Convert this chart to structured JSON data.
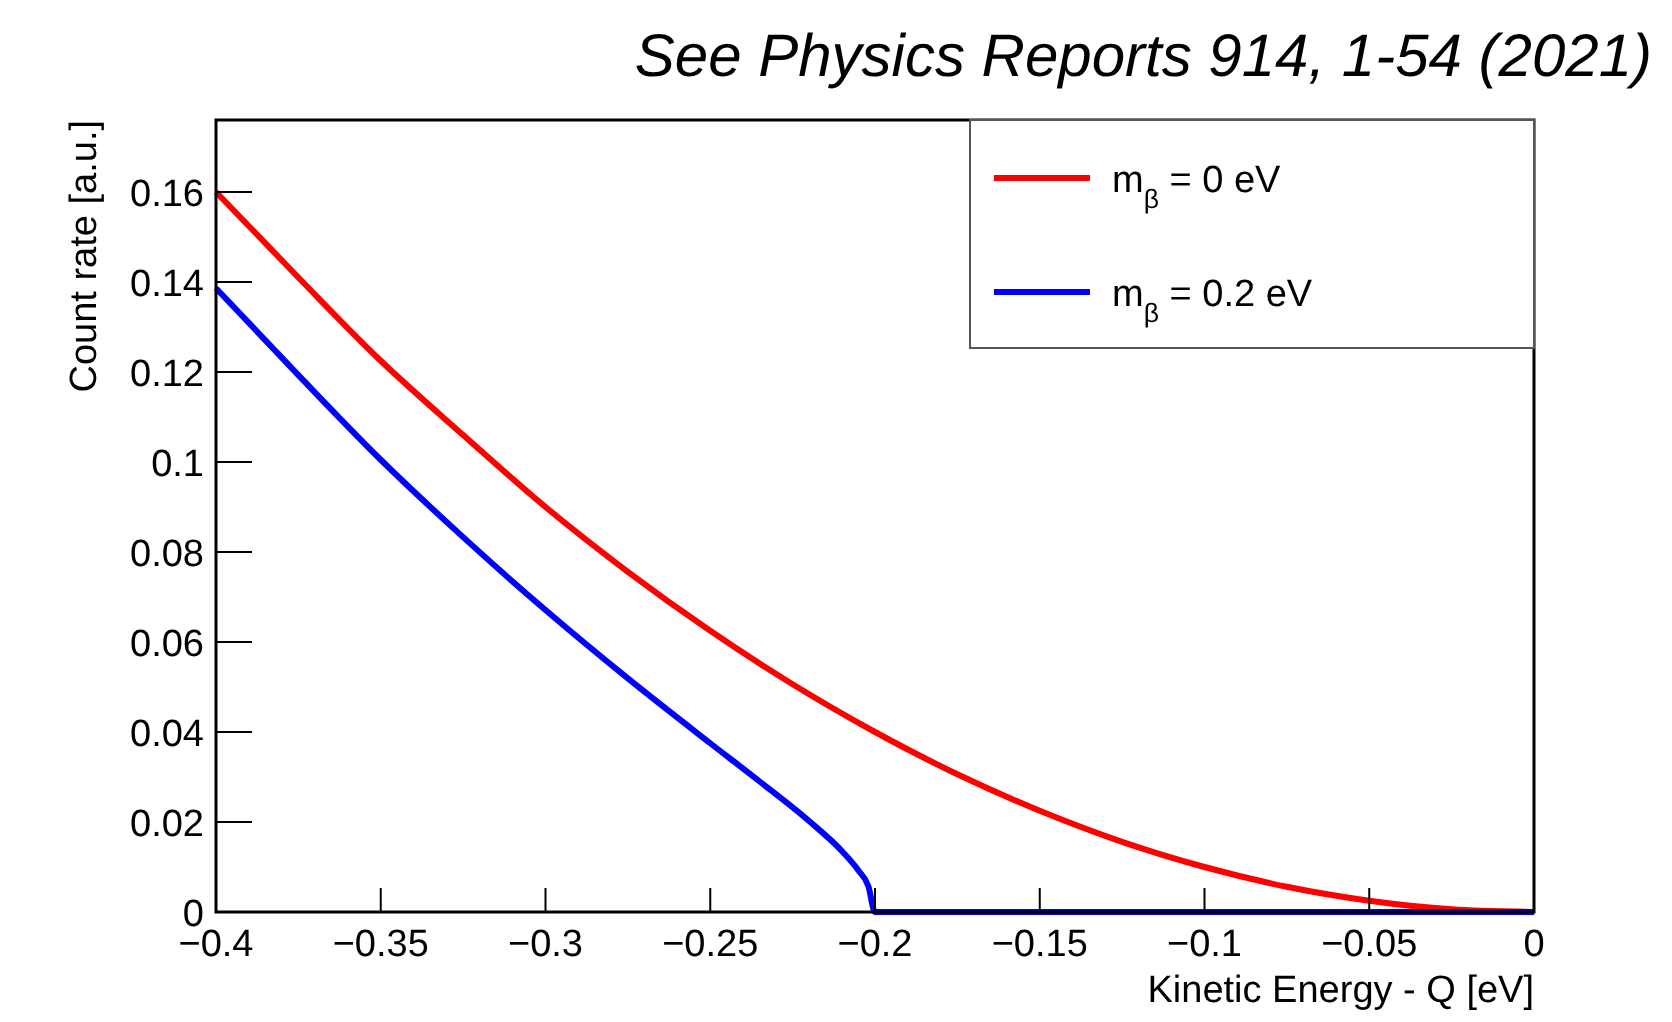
{
  "chart_data": {
    "type": "line",
    "title": "See Physics Reports 914, 1-54 (2021)",
    "xlabel": "Kinetic Energy - Q [eV]",
    "ylabel": "Count rate [a.u.]",
    "xlim": [
      -0.4,
      0
    ],
    "ylim": [
      0,
      0.176
    ],
    "xticks": [
      {
        "value": -0.4,
        "label": "−0.4"
      },
      {
        "value": -0.35,
        "label": "−0.35"
      },
      {
        "value": -0.3,
        "label": "−0.3"
      },
      {
        "value": -0.25,
        "label": "−0.25"
      },
      {
        "value": -0.2,
        "label": "−0.2"
      },
      {
        "value": -0.15,
        "label": "−0.15"
      },
      {
        "value": -0.1,
        "label": "−0.1"
      },
      {
        "value": -0.05,
        "label": "−0.05"
      },
      0
    ],
    "yticks": [
      0,
      0.02,
      0.04,
      0.06,
      0.08,
      0.1,
      0.12,
      0.14,
      0.16
    ],
    "legend": "top right",
    "grid": false,
    "line_style": "solid",
    "marker": "none",
    "series": [
      {
        "name": "m$_{β}$ = 0 eV",
        "color": "#ff0000",
        "x": [
          -0.4,
          -0.375,
          -0.35,
          -0.325,
          -0.3,
          -0.275,
          -0.25,
          -0.225,
          -0.2,
          -0.175,
          -0.15,
          -0.125,
          -0.1,
          -0.075,
          -0.05,
          -0.025,
          0
        ],
        "values": [
          0.16,
          0.141,
          0.1225,
          0.106,
          0.09,
          0.0756,
          0.0625,
          0.0506,
          0.04,
          0.0306,
          0.0225,
          0.0156,
          0.01,
          0.0056,
          0.0025,
          0.0006,
          0
        ]
      },
      {
        "name": "m$_{β}$ = 0.2 eV",
        "color": "#0000ff",
        "x": [
          -0.4,
          -0.375,
          -0.35,
          -0.325,
          -0.3,
          -0.275,
          -0.25,
          -0.235,
          -0.22,
          -0.21,
          -0.205,
          -0.202,
          -0.2,
          -0.15,
          -0.1,
          -0.05,
          0
        ],
        "values": [
          0.1386,
          0.1193,
          0.1005,
          0.0833,
          0.0671,
          0.0519,
          0.0375,
          0.029,
          0.0202,
          0.0135,
          0.0092,
          0.0057,
          0,
          0,
          0,
          0,
          0
        ]
      }
    ]
  }
}
